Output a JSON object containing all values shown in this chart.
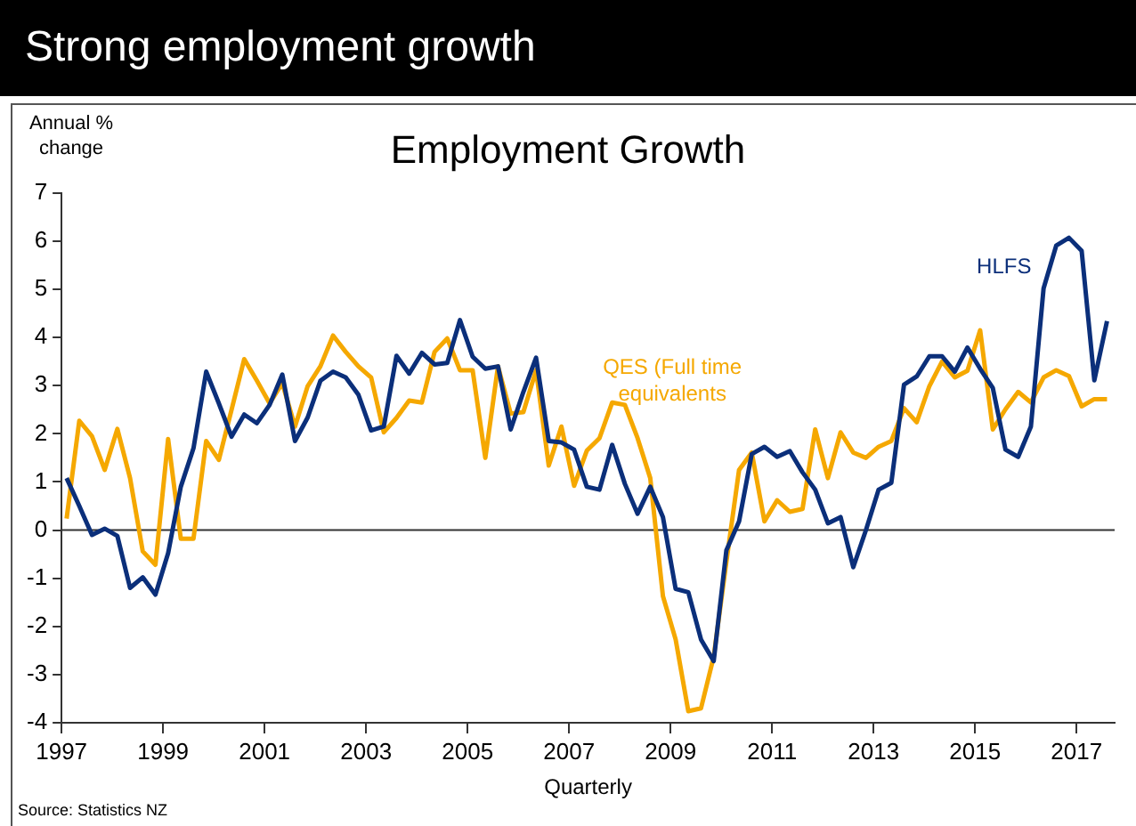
{
  "chart_data": {
    "type": "line",
    "title": "Strong employment growth",
    "subtitle": "Employment Growth",
    "ylabel": "Annual % change",
    "xlabel": "Quarterly",
    "annotations": [
      "Source: Statistics NZ"
    ],
    "x": [
      1997.1,
      1997.35,
      1997.6,
      1997.85,
      1998.1,
      1998.35,
      1998.6,
      1998.85,
      1999.1,
      1999.35,
      1999.6,
      1999.85,
      2000.1,
      2000.35,
      2000.6,
      2000.85,
      2001.1,
      2001.35,
      2001.6,
      2001.85,
      2002.1,
      2002.35,
      2002.6,
      2002.85,
      2003.1,
      2003.35,
      2003.6,
      2003.85,
      2004.1,
      2004.35,
      2004.6,
      2004.85,
      2005.1,
      2005.35,
      2005.6,
      2005.85,
      2006.1,
      2006.35,
      2006.6,
      2006.85,
      2007.1,
      2007.35,
      2007.6,
      2007.85,
      2008.1,
      2008.35,
      2008.6,
      2008.85,
      2009.1,
      2009.35,
      2009.6,
      2009.85,
      2010.1,
      2010.35,
      2010.6,
      2010.85,
      2011.1,
      2011.35,
      2011.6,
      2011.85,
      2012.1,
      2012.35,
      2012.6,
      2012.85,
      2013.1,
      2013.35,
      2013.6,
      2013.85,
      2014.1,
      2014.35,
      2014.6,
      2014.85,
      2015.1,
      2015.35,
      2015.6,
      2015.85,
      2016.1,
      2016.35,
      2016.6,
      2016.85,
      2017.1,
      2017.35,
      2017.6
    ],
    "series": [
      {
        "name": "HLFS",
        "color": "#0b2f7a",
        "values": [
          1.08,
          0.5,
          -0.1,
          0.03,
          -0.12,
          -1.2,
          -0.98,
          -1.34,
          -0.48,
          0.9,
          1.7,
          3.29,
          2.63,
          1.94,
          2.4,
          2.22,
          2.6,
          3.23,
          1.85,
          2.34,
          3.1,
          3.29,
          3.17,
          2.81,
          2.07,
          2.15,
          3.62,
          3.25,
          3.68,
          3.44,
          3.47,
          4.36,
          3.6,
          3.35,
          3.4,
          2.09,
          2.87,
          3.58,
          1.85,
          1.82,
          1.67,
          0.9,
          0.84,
          1.77,
          0.96,
          0.34,
          0.9,
          0.27,
          -1.22,
          -1.29,
          -2.27,
          -2.72,
          -0.42,
          0.18,
          1.58,
          1.73,
          1.52,
          1.64,
          1.2,
          0.84,
          0.14,
          0.27,
          -0.77,
          0,
          0.84,
          0.98,
          3.02,
          3.19,
          3.61,
          3.61,
          3.29,
          3.79,
          3.35,
          2.95,
          1.67,
          1.52,
          2.15,
          5.02,
          5.91,
          6.07,
          5.8,
          3.11,
          4.34
        ]
      },
      {
        "name": "QES (Full time equivalents",
        "color": "#f5a800",
        "values": [
          0.24,
          2.27,
          1.95,
          1.25,
          2.1,
          1.08,
          -0.44,
          -0.72,
          1.89,
          -0.18,
          -0.18,
          1.85,
          1.46,
          2.5,
          3.55,
          3.1,
          2.63,
          3.05,
          2.15,
          2.99,
          3.4,
          4.04,
          3.7,
          3.4,
          3.17,
          2.03,
          2.33,
          2.69,
          2.65,
          3.7,
          3.98,
          3.32,
          3.32,
          1.5,
          3.4,
          2.42,
          2.45,
          3.32,
          1.34,
          2.15,
          0.92,
          1.65,
          1.91,
          2.65,
          2.6,
          1.91,
          1.08,
          -1.37,
          -2.27,
          -3.76,
          -3.7,
          -2.63,
          -0.66,
          1.25,
          1.61,
          0.18,
          0.62,
          0.38,
          0.44,
          2.09,
          1.08,
          2.03,
          1.61,
          1.5,
          1.73,
          1.85,
          2.53,
          2.24,
          2.99,
          3.5,
          3.17,
          3.31,
          4.15,
          2.09,
          2.51,
          2.87,
          2.65,
          3.17,
          3.32,
          3.2,
          2.57,
          2.72,
          2.72
        ]
      }
    ],
    "xlim": [
      1997,
      2017.75
    ],
    "xticks": [
      1997,
      1999,
      2001,
      2003,
      2005,
      2007,
      2009,
      2011,
      2013,
      2015,
      2017
    ],
    "ylim": [
      -4,
      7
    ],
    "yticks": [
      -4,
      -3,
      -2,
      -1,
      0,
      1,
      2,
      3,
      4,
      5,
      6,
      7
    ],
    "ref_lines": [
      {
        "axis": "y",
        "value": 0,
        "color": "#333333"
      }
    ],
    "grid": false,
    "legend": false,
    "marker": "none",
    "line_style": "solid"
  }
}
